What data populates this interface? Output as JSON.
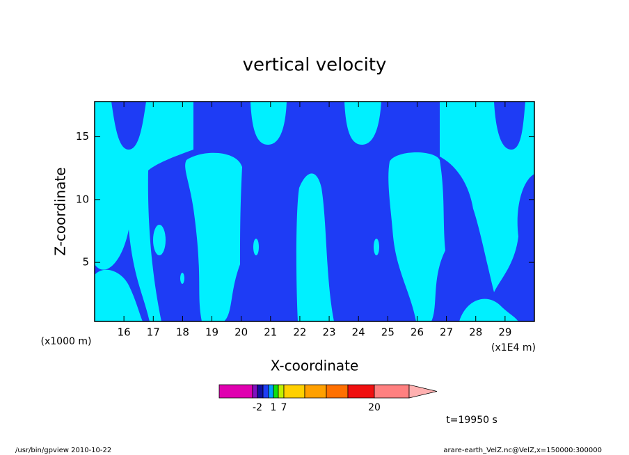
{
  "chart_data": {
    "type": "contour",
    "title": "vertical velocity",
    "xlabel": "X-coordinate",
    "ylabel": "Z-coordinate",
    "x_unit_left": "(x1000 m)",
    "x_unit_right": "(x1E4 m)",
    "time_label": "t=19950 s",
    "footer_left": "/usr/bin/gpview  2010-10-22",
    "footer_right": "arare-earth_VelZ.nc@VelZ,x=150000:300000",
    "xlim": [
      15,
      30
    ],
    "xticks": [
      16,
      17,
      18,
      19,
      20,
      21,
      22,
      23,
      24,
      25,
      26,
      27,
      28,
      29
    ],
    "ylim": [
      0.3,
      17.8
    ],
    "yticks": [
      5,
      10,
      15
    ],
    "colorbar": {
      "colors": [
        "#e000b0",
        "#8010c0",
        "#1010a0",
        "#1e3cf5",
        "#00a0ff",
        "#10e010",
        "#c0f000",
        "#ffd000",
        "#ffa000",
        "#ff7000",
        "#f01010",
        "#ff8080",
        "#ffb0b0"
      ],
      "labels": [
        -2,
        1,
        7,
        20
      ]
    }
  }
}
